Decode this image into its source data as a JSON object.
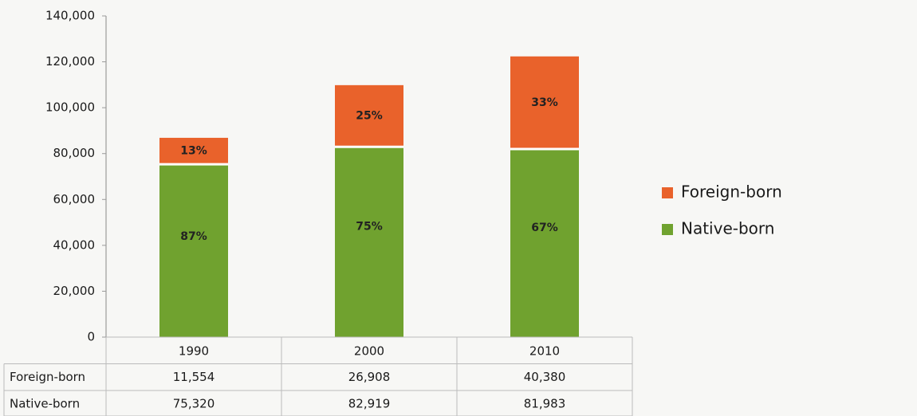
{
  "chart_data": {
    "type": "stacked_bar",
    "categories": [
      "1990",
      "2000",
      "2010"
    ],
    "series": [
      {
        "name": "Native-born",
        "color": "#70a22f",
        "values": [
          75320,
          82919,
          81983
        ],
        "value_labels": [
          "75,320",
          "82,919",
          "81,983"
        ],
        "share_labels": [
          "87%",
          "75%",
          "67%"
        ]
      },
      {
        "name": "Foreign-born",
        "color": "#e9622b",
        "values": [
          11554,
          26908,
          40380
        ],
        "value_labels": [
          "11,554",
          "26,908",
          "40,380"
        ],
        "share_labels": [
          "13%",
          "25%",
          "33%"
        ]
      }
    ],
    "ylim": [
      0,
      140000
    ],
    "yticks": [
      {
        "value": 0,
        "label": "0"
      },
      {
        "value": 20000,
        "label": "20,000"
      },
      {
        "value": 40000,
        "label": "40,000"
      },
      {
        "value": 60000,
        "label": "60,000"
      },
      {
        "value": 80000,
        "label": "80,000"
      },
      {
        "value": 100000,
        "label": "100,000"
      },
      {
        "value": 120000,
        "label": "120,000"
      },
      {
        "value": 140000,
        "label": "140,000"
      }
    ],
    "legend": "right"
  }
}
